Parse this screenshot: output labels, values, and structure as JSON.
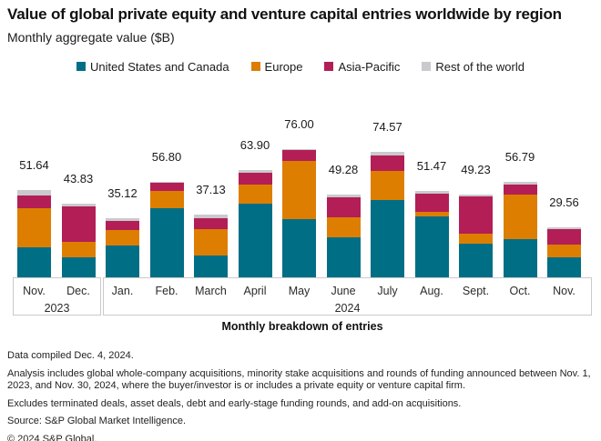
{
  "title": "Value of global private equity and venture capital entries worldwide by region",
  "subtitle": "Monthly aggregate value ($B)",
  "legend": [
    {
      "label": "United States and Canada",
      "color": "#006E85"
    },
    {
      "label": "Europe",
      "color": "#DD7E00"
    },
    {
      "label": "Asia-Pacific",
      "color": "#B31E56"
    },
    {
      "label": "Rest of the world",
      "color": "#C9CACC"
    }
  ],
  "chart_data": {
    "type": "stacked-bar",
    "categories": [
      "Nov.",
      "Dec.",
      "Jan.",
      "Feb.",
      "March",
      "April",
      "May",
      "June",
      "July",
      "Aug.",
      "Sept.",
      "Oct.",
      "Nov."
    ],
    "year_groups": [
      {
        "label": "2023",
        "start_index": 0,
        "end_index": 1
      },
      {
        "label": "2024",
        "start_index": 2,
        "end_index": 12
      }
    ],
    "totals": [
      51.64,
      43.83,
      35.12,
      56.8,
      37.13,
      63.9,
      76.0,
      49.28,
      74.57,
      51.47,
      49.23,
      56.79,
      29.56
    ],
    "total_labels": [
      "51.64",
      "43.83",
      "35.12",
      "56.80",
      "37.13",
      "63.90",
      "76.00",
      "49.28",
      "74.57",
      "51.47",
      "49.23",
      "56.79",
      "29.56"
    ],
    "series": [
      {
        "name": "United States and Canada",
        "color": "#006E85",
        "values": [
          17.9,
          11.9,
          19.0,
          41.3,
          13.0,
          43.6,
          34.7,
          23.6,
          46.2,
          36.0,
          19.9,
          22.6,
          12.0
        ]
      },
      {
        "name": "Europe",
        "color": "#DD7E00",
        "values": [
          23.3,
          9.4,
          8.9,
          10.1,
          15.4,
          11.3,
          34.6,
          11.9,
          17.0,
          2.9,
          6.0,
          26.4,
          7.3
        ]
      },
      {
        "name": "Asia-Pacific",
        "color": "#B31E56",
        "values": [
          7.3,
          20.7,
          5.4,
          5.0,
          6.9,
          7.5,
          6.2,
          12.0,
          9.2,
          10.8,
          22.1,
          6.3,
          9.4
        ]
      },
      {
        "name": "Rest of the world",
        "color": "#C9CACC",
        "values": [
          3.1,
          1.8,
          1.8,
          0.4,
          1.8,
          1.5,
          0.5,
          1.8,
          2.2,
          1.8,
          1.2,
          1.5,
          0.9
        ]
      }
    ],
    "xlabel": "Monthly breakdown of entries",
    "ylabel": "",
    "value_labels_shown": true,
    "grid": false,
    "legend_position": "top-center"
  },
  "footer": {
    "lines": [
      "Data compiled Dec. 4, 2024.",
      "Analysis includes global whole-company acquisitions, minority stake acquisitions and rounds of funding announced between Nov. 1, 2023, and Nov. 30, 2024, where the buyer/investor is or includes a private equity or venture capital firm.",
      "Excludes terminated deals, asset deals, debt and early-stage funding rounds, and add-on acquisitions.",
      "Source: S&P Global Market Intelligence.",
      "© 2024 S&P Global."
    ]
  }
}
